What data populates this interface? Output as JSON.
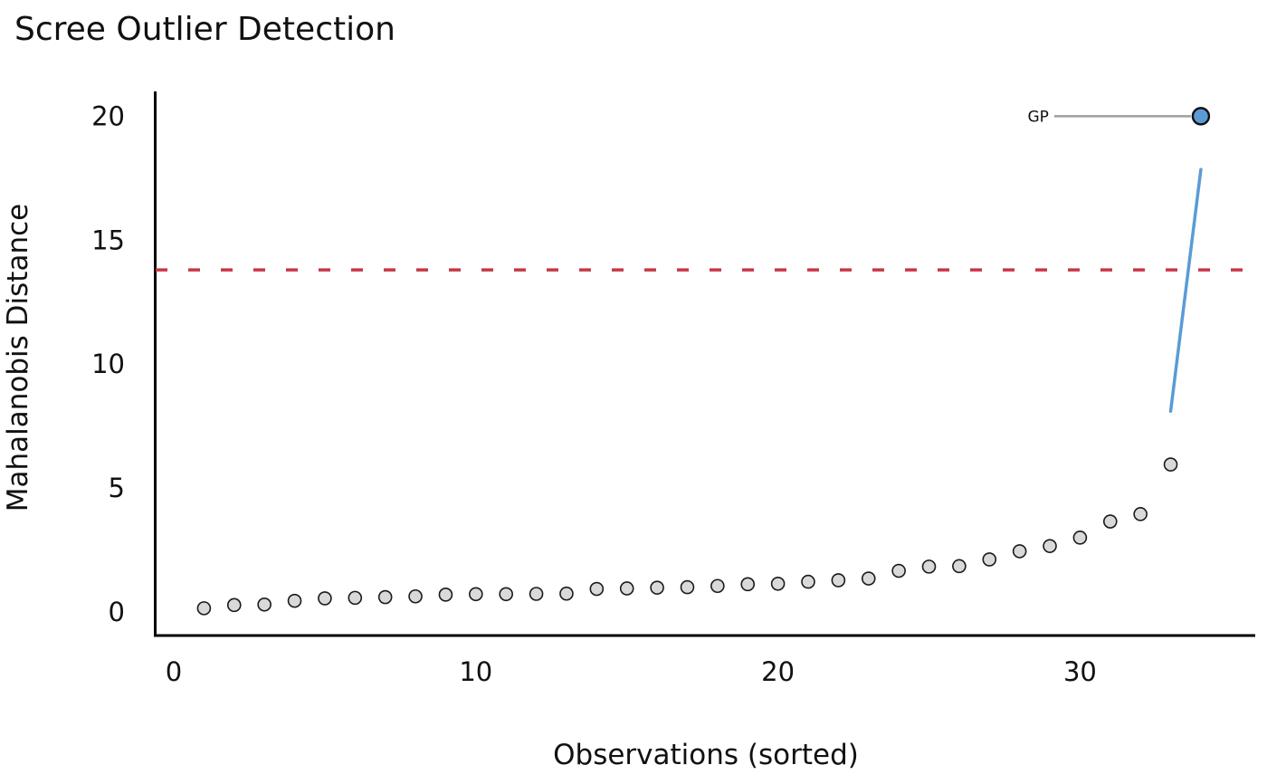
{
  "chart_data": {
    "type": "scatter",
    "title": "Scree Outlier Detection",
    "xlabel": "Observations (sorted)",
    "ylabel": "Mahalanobis Distance",
    "xticks": [
      0,
      10,
      20,
      30
    ],
    "yticks": [
      0,
      5,
      10,
      15,
      20
    ],
    "xlim": [
      -0.6,
      35.8
    ],
    "ylim": [
      -0.95,
      21.0
    ],
    "grid": false,
    "legend": "none",
    "n_points": 34,
    "points": {
      "x": [
        1,
        2,
        3,
        4,
        5,
        6,
        7,
        8,
        9,
        10,
        11,
        12,
        13,
        14,
        15,
        16,
        17,
        18,
        19,
        20,
        21,
        22,
        23,
        24,
        25,
        26,
        27,
        28,
        29,
        30,
        31,
        32,
        33
      ],
      "y": [
        0.15,
        0.28,
        0.3,
        0.45,
        0.55,
        0.57,
        0.6,
        0.63,
        0.7,
        0.72,
        0.72,
        0.73,
        0.74,
        0.93,
        0.95,
        0.98,
        1.0,
        1.05,
        1.12,
        1.14,
        1.22,
        1.28,
        1.35,
        1.66,
        1.83,
        1.85,
        2.12,
        2.45,
        2.66,
        3.0,
        3.65,
        3.95,
        5.95
      ]
    },
    "outlier": {
      "x": 34,
      "y": 20.0,
      "label": "GP"
    },
    "threshold_line": {
      "orientation": "horizontal",
      "y": 13.8,
      "style": "dashed"
    },
    "fit_segment": {
      "x": [
        33,
        34
      ],
      "y": [
        8.1,
        17.85
      ]
    },
    "colors": {
      "point_fill": "#d9d9d9",
      "point_edge": "#1a1a1a",
      "outlier_fill": "#5b9bd5",
      "outlier_edge": "#111111",
      "annotation_text": "#6fa3d8",
      "annotation_connector": "#9e9e9e",
      "threshold": "#c83746",
      "fit_line": "#5b9bd5",
      "axis": "#000000"
    }
  }
}
